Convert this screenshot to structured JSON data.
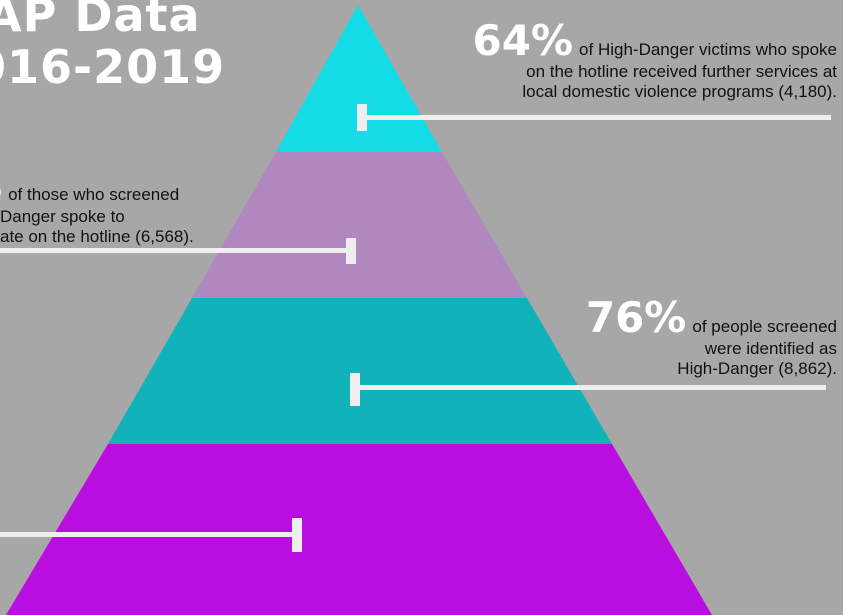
{
  "title": {
    "line1": "AP Data",
    "line2": "016-2019"
  },
  "pyramid": {
    "tiers": [
      {
        "name": "tier-1-top",
        "color": "#14dde8"
      },
      {
        "name": "tier-2",
        "color": "#b088bf"
      },
      {
        "name": "tier-3",
        "color": "#11b2ba"
      },
      {
        "name": "tier-4-bottom",
        "color": "#b90ee0"
      }
    ],
    "marker_color": "#eeeeee"
  },
  "callouts": {
    "top": {
      "percent": "64%",
      "line1": "of High-Danger victims who spoke",
      "line2": "on the hotline received further services at",
      "line3": "local domestic violence programs (4,180)."
    },
    "left": {
      "percent": "%",
      "line1": "of those who screened",
      "line2": "Danger spoke to",
      "line3": "ate on the hotline (6,568)."
    },
    "middle": {
      "percent": "76%",
      "line1": "of people screened",
      "line2": "were identified as",
      "line3": "High-Danger (8,862)."
    }
  }
}
